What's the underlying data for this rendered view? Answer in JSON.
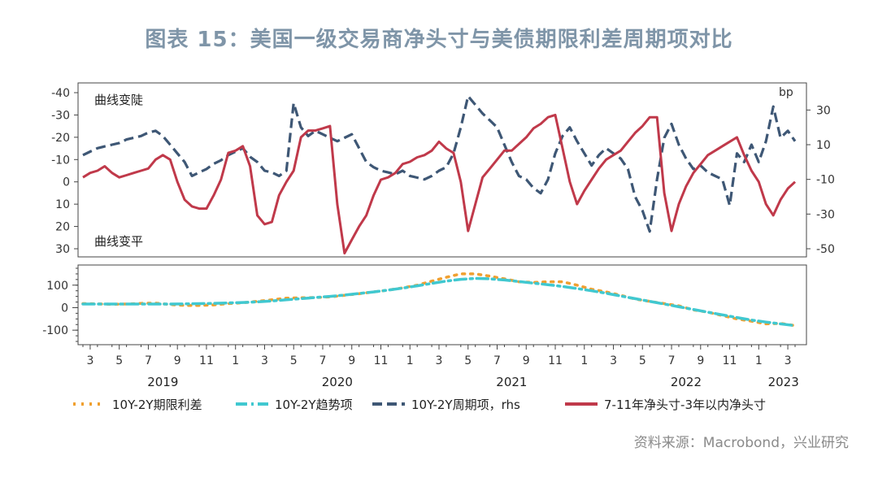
{
  "title": "图表 15：美国一级交易商净头寸与美债期限利差周期项对比",
  "source": "资料来源：Macrobond，兴业研究",
  "chart_data": [
    {
      "type": "line",
      "panel": "upper",
      "left_axis": {
        "ticks": [
          -40,
          -30,
          -20,
          -10,
          0,
          10,
          20,
          30
        ],
        "ylim": [
          -40,
          30
        ],
        "inverted": true
      },
      "right_axis": {
        "unit_label": "bp",
        "ticks": [
          30,
          10,
          -10,
          -30,
          -50
        ],
        "ylim": [
          -50,
          40
        ]
      },
      "annotations": [
        "曲线变陡",
        "曲线变平"
      ],
      "series": [
        {
          "name": "10Y-2Y周期项，rhs",
          "axis": "right",
          "color": "#3e5775",
          "style": "dashed",
          "t": [
            0,
            0.5,
            1,
            1.5,
            2,
            2.5,
            3,
            3.5,
            4,
            4.5,
            5,
            5.5,
            6,
            6.5,
            7,
            7.5,
            8,
            8.5,
            9,
            9.5,
            10,
            10.5,
            11,
            11.5,
            12,
            12.5,
            13,
            13.5,
            14,
            14.5,
            15,
            15.5,
            16,
            16.5,
            17,
            17.5,
            18,
            18.5,
            19,
            19.5,
            20,
            20.5,
            21,
            21.5,
            22,
            22.5,
            23,
            23.5,
            24,
            24.5,
            25,
            25.5,
            26,
            26.5,
            27,
            27.5,
            28,
            28.5,
            29,
            29.5,
            30,
            30.5,
            31,
            31.5,
            32,
            32.5,
            33,
            33.5,
            34,
            34.5,
            35,
            35.5,
            36,
            36.5,
            37,
            37.5,
            38,
            38.5,
            39,
            39.5,
            40,
            40.5,
            41,
            41.5,
            42,
            42.5,
            43,
            43.5,
            44,
            44.5,
            45,
            45.5,
            46,
            46.5,
            47,
            47.5,
            48,
            48.5,
            49
          ],
          "values": [
            4,
            6,
            8,
            9,
            10,
            11,
            13,
            14,
            15,
            17,
            18,
            15,
            10,
            5,
            0,
            -8,
            -6,
            -4,
            -1,
            1,
            4,
            6,
            8,
            3,
            0,
            -5,
            -6,
            -8,
            -5,
            34,
            20,
            15,
            18,
            16,
            14,
            12,
            14,
            16,
            8,
            0,
            -3,
            -5,
            -6,
            -7,
            -5,
            -8,
            -9,
            -10,
            -8,
            -5,
            -3,
            5,
            20,
            38,
            33,
            28,
            24,
            20,
            10,
            0,
            -8,
            -10,
            -15,
            -18,
            -10,
            5,
            15,
            20,
            12,
            5,
            -2,
            4,
            8,
            5,
            2,
            -4,
            -20,
            -28,
            -40,
            -10,
            14,
            22,
            10,
            2,
            -4,
            -2,
            -6,
            -8,
            -10,
            -25,
            5,
            0,
            10,
            0,
            12,
            32,
            14,
            18,
            12
          ]
        },
        {
          "name": "7-11年净头寸-3年以内净头寸",
          "axis": "left",
          "color": "#c0394a",
          "style": "solid",
          "t": [
            0,
            0.5,
            1,
            1.5,
            2,
            2.5,
            3,
            3.5,
            4,
            4.5,
            5,
            5.5,
            6,
            6.5,
            7,
            7.5,
            8,
            8.5,
            9,
            9.5,
            10,
            10.5,
            11,
            11.5,
            12,
            12.5,
            13,
            13.5,
            14,
            14.5,
            15,
            15.5,
            16,
            16.5,
            17,
            17.5,
            18,
            18.5,
            19,
            19.5,
            20,
            20.5,
            21,
            21.5,
            22,
            22.5,
            23,
            23.5,
            24,
            24.5,
            25,
            25.5,
            26,
            26.5,
            27,
            27.5,
            28,
            28.5,
            29,
            29.5,
            30,
            30.5,
            31,
            31.5,
            32,
            32.5,
            33,
            33.5,
            34,
            34.5,
            35,
            35.5,
            36,
            36.5,
            37,
            37.5,
            38,
            38.5,
            39,
            39.5,
            40,
            40.5,
            41,
            41.5,
            42,
            42.5,
            43,
            43.5,
            44,
            44.5,
            45,
            45.5,
            46,
            46.5,
            47,
            47.5,
            48,
            48.5,
            49
          ],
          "values": [
            -2,
            -4,
            -5,
            -7,
            -4,
            -2,
            -3,
            -4,
            -5,
            -6,
            -10,
            -12,
            -10,
            0,
            8,
            11,
            12,
            12,
            6,
            -1,
            -13,
            -14,
            -16,
            -7,
            15,
            19,
            18,
            6,
            0,
            -5,
            -20,
            -23,
            -23,
            -24,
            -25,
            10,
            32,
            26,
            20,
            15,
            6,
            -1,
            -2,
            -4,
            -8,
            -9,
            -11,
            -12,
            -14,
            -18,
            -15,
            -13,
            0,
            22,
            10,
            -2,
            -6,
            -10,
            -14,
            -14,
            -17,
            -20,
            -24,
            -26,
            -29,
            -30,
            -15,
            0,
            10,
            4,
            -1,
            -6,
            -10,
            -12,
            -14,
            -18,
            -22,
            -25,
            -29,
            -29,
            5,
            22,
            10,
            2,
            -4,
            -8,
            -12,
            -14,
            -16,
            -18,
            -20,
            -12,
            -5,
            0,
            10,
            15,
            8,
            3,
            0
          ]
        }
      ]
    },
    {
      "type": "line",
      "panel": "lower",
      "y_ticks": [
        100,
        0,
        -100
      ],
      "ylim": [
        -150,
        175
      ],
      "series": [
        {
          "name": "10Y-2Y期限利差",
          "color": "#f0a030",
          "style": "dotted",
          "t": [
            0,
            1,
            2,
            3,
            4,
            5,
            6,
            7,
            8,
            9,
            10,
            11,
            12,
            13,
            14,
            15,
            16,
            17,
            18,
            19,
            20,
            21,
            22,
            23,
            24,
            25,
            26,
            27,
            28,
            29,
            30,
            31,
            32,
            33,
            34,
            35,
            36,
            37,
            38,
            39,
            40,
            41,
            42,
            43,
            44,
            45,
            46,
            47,
            48,
            49
          ],
          "values": [
            18,
            17,
            15,
            16,
            19,
            20,
            14,
            10,
            10,
            12,
            18,
            22,
            28,
            35,
            42,
            44,
            45,
            48,
            55,
            62,
            70,
            78,
            88,
            100,
            118,
            135,
            150,
            150,
            140,
            128,
            115,
            112,
            115,
            115,
            100,
            82,
            70,
            55,
            38,
            28,
            18,
            8,
            -10,
            -20,
            -35,
            -50,
            -60,
            -72,
            -70,
            -80
          ]
        },
        {
          "name": "10Y-2Y趋势项",
          "color": "#40c8d0",
          "style": "dashdot",
          "t": [
            0,
            1,
            2,
            3,
            4,
            5,
            6,
            7,
            8,
            9,
            10,
            11,
            12,
            13,
            14,
            15,
            16,
            17,
            18,
            19,
            20,
            21,
            22,
            23,
            24,
            25,
            26,
            27,
            28,
            29,
            30,
            31,
            32,
            33,
            34,
            35,
            36,
            37,
            38,
            39,
            40,
            41,
            42,
            43,
            44,
            45,
            46,
            47,
            48,
            49
          ],
          "values": [
            16,
            16,
            16,
            16,
            16,
            16,
            16,
            17,
            18,
            19,
            21,
            23,
            26,
            30,
            35,
            40,
            45,
            50,
            56,
            63,
            70,
            78,
            87,
            97,
            108,
            118,
            126,
            130,
            128,
            123,
            116,
            109,
            102,
            94,
            85,
            75,
            64,
            52,
            40,
            28,
            16,
            4,
            -8,
            -20,
            -32,
            -44,
            -55,
            -64,
            -72,
            -80
          ]
        }
      ]
    }
  ],
  "x_axis": {
    "month_ticks": [
      "3",
      "5",
      "7",
      "9",
      "11",
      "1",
      "3",
      "5",
      "7",
      "9",
      "11",
      "1",
      "3",
      "5",
      "7",
      "9",
      "11",
      "1",
      "3",
      "5",
      "7",
      "9",
      "11",
      "1",
      "3"
    ],
    "years": [
      "2019",
      "2020",
      "2021",
      "2022",
      "2023"
    ]
  },
  "legend": {
    "placement": "bottom",
    "items": [
      {
        "label": "10Y-2Y期限利差",
        "color": "#f0a030",
        "style": "dotted"
      },
      {
        "label": "10Y-2Y趋势项",
        "color": "#40c8d0",
        "style": "dashdot"
      },
      {
        "label": "10Y-2Y周期项，rhs",
        "color": "#3e5775",
        "style": "dashed"
      },
      {
        "label": "7-11年净头寸-3年以内净头寸",
        "color": "#c0394a",
        "style": "solid"
      }
    ]
  }
}
